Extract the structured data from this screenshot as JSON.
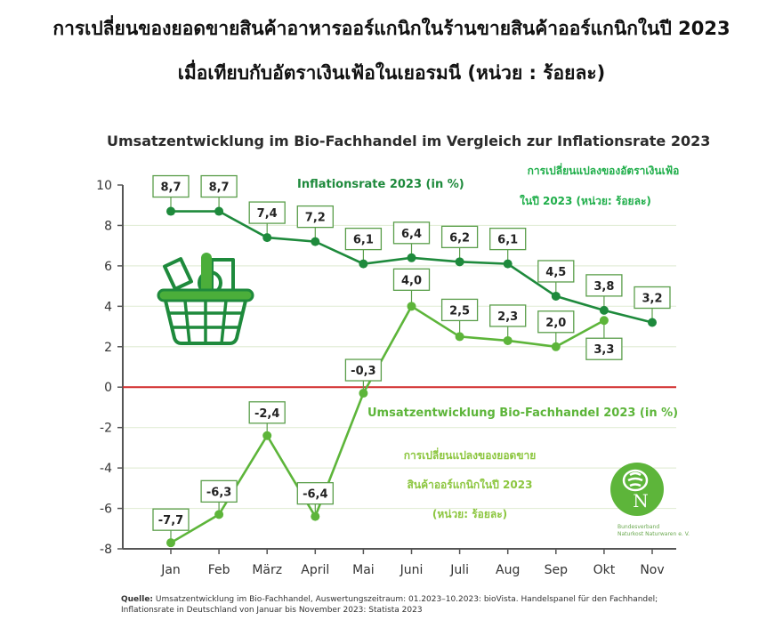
{
  "header": {
    "title_line1": "การเปลี่ยนของยอดขายสินค้าอาหารออร์แกนิกในร้านขายสินค้าออร์แกนิกในปี 2023",
    "title_line2": "เมื่อเทียบกับอัตราเงินเฟ้อในเยอรมนี (หน่วย : ร้อยละ)"
  },
  "colors": {
    "inflation": "#1e8a3c",
    "sales": "#5db53a",
    "zero_line": "#d12a2a",
    "grid": "#e3eed8",
    "axis": "#555555",
    "box_border": "#5a9e4a"
  },
  "chart_data": {
    "type": "line",
    "title": "Umsatzentwicklung im Bio-Fachhandel im Vergleich zur Inflationsrate 2023",
    "xlabel": "",
    "ylabel": "",
    "categories": [
      "Jan",
      "Feb",
      "März",
      "April",
      "Mai",
      "Juni",
      "Juli",
      "Aug",
      "Sep",
      "Okt",
      "Nov"
    ],
    "y_ticks": [
      10,
      8,
      6,
      4,
      2,
      0,
      -2,
      -4,
      -6,
      -8
    ],
    "ylim": [
      -8,
      10
    ],
    "grid": true,
    "series": [
      {
        "name": "Inflationsrate 2023 (in %)",
        "values": [
          8.7,
          8.7,
          7.4,
          7.2,
          6.1,
          6.4,
          6.2,
          6.1,
          4.5,
          3.8,
          3.2
        ],
        "labels": [
          "8,7",
          "8,7",
          "7,4",
          "7,2",
          "6,1",
          "6,4",
          "6,2",
          "6,1",
          "4,5",
          "3,8",
          "3,2"
        ]
      },
      {
        "name": "Umsatzentwicklung Bio-Fachhandel 2023 (in %)",
        "values": [
          -7.7,
          -6.3,
          -2.4,
          -6.4,
          -0.3,
          4.0,
          2.5,
          2.3,
          2.0,
          3.3,
          null
        ],
        "labels": [
          "-7,7",
          "-6,3",
          "-2,4",
          "-6,4",
          "-0,3",
          "4,0",
          "2,5",
          "2,3",
          "2,0",
          "3,3",
          null
        ]
      }
    ],
    "annotations": {
      "inflation_thai": [
        "การเปลี่ยนแปลงของอัตราเงินเฟ้อ",
        "ในปี 2023 (หน่วย: ร้อยละ)"
      ],
      "sales_thai": [
        "การเปลี่ยนแปลงของยอดขาย",
        "สินค้าออร์แกนิกในปี 2023",
        "(หน่วย: ร้อยละ)"
      ]
    },
    "logo": {
      "line1": "Bundesverband",
      "line2": "Naturkost Naturwaren e. V.",
      "letter": "N"
    },
    "icon": "shopping-basket-icon"
  },
  "footer": {
    "source_label": "Quelle:",
    "source_line1": "Umsatzentwicklung im Bio-Fachhandel, Auswertungszeitraum: 01.2023–10.2023: bioVista. Handelspanel für den Fachhandel;",
    "source_line2": "Inflationsrate in Deutschland von Januar bis November 2023: Statista 2023"
  }
}
